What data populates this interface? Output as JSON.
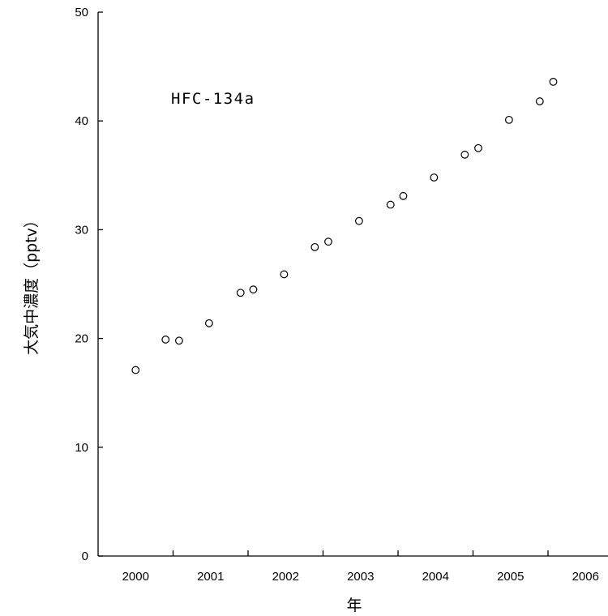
{
  "chart_data": {
    "type": "scatter",
    "xlabel": "年",
    "ylabel": "大気中濃度（pptv）",
    "annotation": "HFC-134a",
    "x_categories": [
      "2000",
      "2001",
      "2002",
      "2003",
      "2004",
      "2005",
      "2006"
    ],
    "xlim": [
      1999.5,
      2006.3
    ],
    "ylim": [
      0,
      50
    ],
    "yticks": [
      0,
      10,
      20,
      30,
      40,
      50
    ],
    "grid": false,
    "points": [
      {
        "x": 2000.0,
        "y": 17.1
      },
      {
        "x": 2000.4,
        "y": 19.9
      },
      {
        "x": 2000.58,
        "y": 19.8
      },
      {
        "x": 2000.98,
        "y": 21.4
      },
      {
        "x": 2001.4,
        "y": 24.2
      },
      {
        "x": 2001.57,
        "y": 24.5
      },
      {
        "x": 2001.98,
        "y": 25.9
      },
      {
        "x": 2002.39,
        "y": 28.4
      },
      {
        "x": 2002.57,
        "y": 28.9
      },
      {
        "x": 2002.98,
        "y": 30.8
      },
      {
        "x": 2003.4,
        "y": 32.3
      },
      {
        "x": 2003.57,
        "y": 33.1
      },
      {
        "x": 2003.98,
        "y": 34.8
      },
      {
        "x": 2004.39,
        "y": 36.9
      },
      {
        "x": 2004.57,
        "y": 37.5
      },
      {
        "x": 2004.98,
        "y": 40.1
      },
      {
        "x": 2005.39,
        "y": 41.8
      },
      {
        "x": 2005.57,
        "y": 43.6
      }
    ]
  }
}
